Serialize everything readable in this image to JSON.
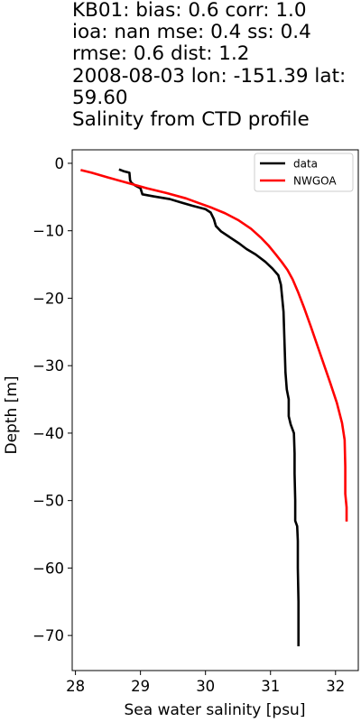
{
  "chart_data": {
    "type": "line",
    "title_lines": [
      "KB01: bias: 0.6  corr: 1.0",
      "ioa: nan  mse: 0.4  ss: 0.4",
      "rmse: 0.6  dist: 1.2",
      "2008-08-03 lon: -151.39 lat:",
      "59.60",
      "Salinity from CTD profile"
    ],
    "xlabel": "Sea water salinity [psu]",
    "ylabel": "Depth [m]",
    "xlim": [
      27.95,
      32.35
    ],
    "ylim": [
      -75.2,
      2.0
    ],
    "xticks": [
      28,
      29,
      30,
      31,
      32
    ],
    "yticks": [
      0,
      -10,
      -20,
      -30,
      -40,
      -50,
      -60,
      -70
    ],
    "xtick_labels": [
      "28",
      "29",
      "30",
      "31",
      "32"
    ],
    "ytick_labels": [
      "0",
      "−10",
      "−20",
      "−30",
      "−40",
      "−50",
      "−60",
      "−70"
    ],
    "grid": false,
    "legend_position": "top-right",
    "series": [
      {
        "name": "data",
        "color": "#000000",
        "points": [
          [
            28.67,
            -0.9
          ],
          [
            28.75,
            -1.2
          ],
          [
            28.83,
            -1.4
          ],
          [
            28.84,
            -2.5
          ],
          [
            28.86,
            -2.9
          ],
          [
            28.92,
            -3.3
          ],
          [
            29.0,
            -3.7
          ],
          [
            29.03,
            -4.6
          ],
          [
            29.2,
            -4.9
          ],
          [
            29.45,
            -5.3
          ],
          [
            29.62,
            -5.8
          ],
          [
            29.8,
            -6.3
          ],
          [
            30.0,
            -6.8
          ],
          [
            30.08,
            -7.3
          ],
          [
            30.13,
            -8.3
          ],
          [
            30.16,
            -9.3
          ],
          [
            30.24,
            -10.1
          ],
          [
            30.38,
            -11.0
          ],
          [
            30.52,
            -11.9
          ],
          [
            30.63,
            -12.7
          ],
          [
            30.77,
            -13.5
          ],
          [
            30.92,
            -14.6
          ],
          [
            31.03,
            -15.6
          ],
          [
            31.12,
            -16.6
          ],
          [
            31.16,
            -18.0
          ],
          [
            31.18,
            -20.0
          ],
          [
            31.2,
            -22.0
          ],
          [
            31.21,
            -25.0
          ],
          [
            31.22,
            -28.0
          ],
          [
            31.23,
            -31.0
          ],
          [
            31.25,
            -33.5
          ],
          [
            31.28,
            -35.0
          ],
          [
            31.28,
            -37.5
          ],
          [
            31.31,
            -38.7
          ],
          [
            31.36,
            -40.0
          ],
          [
            31.37,
            -43.0
          ],
          [
            31.37,
            -46.0
          ],
          [
            31.38,
            -50.0
          ],
          [
            31.38,
            -53.0
          ],
          [
            31.41,
            -53.8
          ],
          [
            31.42,
            -56.0
          ],
          [
            31.42,
            -60.0
          ],
          [
            31.43,
            -65.0
          ],
          [
            31.43,
            -71.6
          ]
        ]
      },
      {
        "name": "NWGOA",
        "color": "#ff0000",
        "points": [
          [
            28.08,
            -1.0
          ],
          [
            28.25,
            -1.4
          ],
          [
            28.5,
            -2.1
          ],
          [
            28.8,
            -2.9
          ],
          [
            29.1,
            -3.7
          ],
          [
            29.4,
            -4.4
          ],
          [
            29.7,
            -5.2
          ],
          [
            29.9,
            -5.9
          ],
          [
            30.1,
            -6.6
          ],
          [
            30.3,
            -7.4
          ],
          [
            30.5,
            -8.4
          ],
          [
            30.7,
            -9.7
          ],
          [
            30.85,
            -11.0
          ],
          [
            30.97,
            -12.2
          ],
          [
            31.08,
            -13.5
          ],
          [
            31.17,
            -14.6
          ],
          [
            31.26,
            -15.8
          ],
          [
            31.34,
            -17.2
          ],
          [
            31.42,
            -19.0
          ],
          [
            31.52,
            -21.5
          ],
          [
            31.62,
            -24.2
          ],
          [
            31.72,
            -27.0
          ],
          [
            31.82,
            -29.8
          ],
          [
            31.92,
            -32.6
          ],
          [
            32.02,
            -35.5
          ],
          [
            32.1,
            -38.5
          ],
          [
            32.14,
            -41.0
          ],
          [
            32.15,
            -45.0
          ],
          [
            32.15,
            -49.0
          ],
          [
            32.17,
            -51.0
          ],
          [
            32.17,
            -53.1
          ]
        ]
      }
    ]
  }
}
